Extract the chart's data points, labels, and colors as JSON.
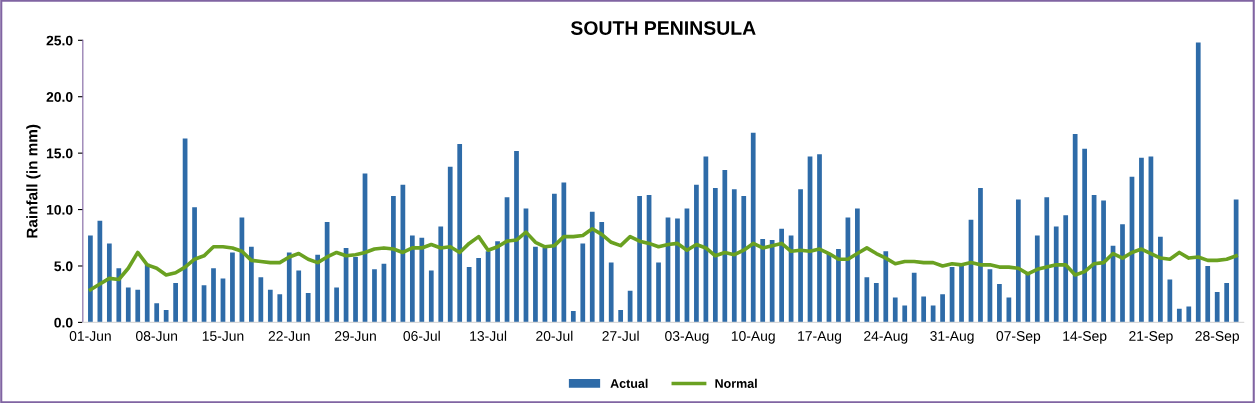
{
  "chart_data": {
    "type": "bar",
    "title": "SOUTH PENINSULA",
    "ylabel": "Rainfall (in mm)",
    "categories": [
      "01-Jun",
      null,
      null,
      null,
      null,
      null,
      null,
      "08-Jun",
      null,
      null,
      null,
      null,
      null,
      null,
      "15-Jun",
      null,
      null,
      null,
      null,
      null,
      null,
      "22-Jun",
      null,
      null,
      null,
      null,
      null,
      null,
      "29-Jun",
      null,
      null,
      null,
      null,
      null,
      null,
      "06-Jul",
      null,
      null,
      null,
      null,
      null,
      null,
      "13-Jul",
      null,
      null,
      null,
      null,
      null,
      null,
      "20-Jul",
      null,
      null,
      null,
      null,
      null,
      null,
      "27-Jul",
      null,
      null,
      null,
      null,
      null,
      null,
      "03-Aug",
      null,
      null,
      null,
      null,
      null,
      null,
      "10-Aug",
      null,
      null,
      null,
      null,
      null,
      null,
      "17-Aug",
      null,
      null,
      null,
      null,
      null,
      null,
      "24-Aug",
      null,
      null,
      null,
      null,
      null,
      null,
      "31-Aug",
      null,
      null,
      null,
      null,
      null,
      null,
      "07-Sep",
      null,
      null,
      null,
      null,
      null,
      null,
      "14-Sep",
      null,
      null,
      null,
      null,
      null,
      null,
      "21-Sep",
      null,
      null,
      null,
      null,
      null,
      null,
      "28-Sep",
      null,
      null
    ],
    "series": [
      {
        "name": "Actual",
        "color": "#2e6ba8",
        "values": [
          7.7,
          9.0,
          7.0,
          4.8,
          3.1,
          2.9,
          5.2,
          1.7,
          1.1,
          3.5,
          16.3,
          10.2,
          3.3,
          4.8,
          3.9,
          6.2,
          9.3,
          6.7,
          4.0,
          2.9,
          2.5,
          6.2,
          4.6,
          2.6,
          6.0,
          8.9,
          3.1,
          6.6,
          5.8,
          13.2,
          4.7,
          5.2,
          11.2,
          12.2,
          7.7,
          7.5,
          4.6,
          8.5,
          13.8,
          15.8,
          4.9,
          5.7,
          6.3,
          7.2,
          11.1,
          15.2,
          10.1,
          6.7,
          6.6,
          11.4,
          12.4,
          1.0,
          7.0,
          9.8,
          8.9,
          5.3,
          1.1,
          2.8,
          11.2,
          11.3,
          5.3,
          9.3,
          9.2,
          10.1,
          12.2,
          14.7,
          11.9,
          13.5,
          11.8,
          11.2,
          16.8,
          7.4,
          7.3,
          8.3,
          7.7,
          11.8,
          14.7,
          14.9,
          6.1,
          6.5,
          9.3,
          10.1,
          4.0,
          3.5,
          6.3,
          2.2,
          1.5,
          4.4,
          2.3,
          1.5,
          2.5,
          4.9,
          5.2,
          9.1,
          11.9,
          4.7,
          3.4,
          2.2,
          10.9,
          4.4,
          7.7,
          11.1,
          8.5,
          9.5,
          16.7,
          15.4,
          11.3,
          10.8,
          6.8,
          8.7,
          12.9,
          14.6,
          14.7,
          7.6,
          3.8,
          1.2,
          1.4,
          24.8,
          5.0,
          2.7,
          3.5,
          10.9
        ]
      },
      {
        "name": "Normal",
        "type": "line",
        "color": "#6aa121",
        "values": [
          2.9,
          3.4,
          3.9,
          3.8,
          4.8,
          6.2,
          5.1,
          4.8,
          4.2,
          4.4,
          4.9,
          5.6,
          5.9,
          6.7,
          6.7,
          6.6,
          6.3,
          5.5,
          5.4,
          5.3,
          5.3,
          5.8,
          6.1,
          5.6,
          5.3,
          5.8,
          6.2,
          5.9,
          6.0,
          6.2,
          6.5,
          6.6,
          6.5,
          6.2,
          6.6,
          6.6,
          6.9,
          6.6,
          6.7,
          6.2,
          7.0,
          7.6,
          6.4,
          6.7,
          7.2,
          7.3,
          8.0,
          7.1,
          6.7,
          6.8,
          7.6,
          7.6,
          7.7,
          8.3,
          7.8,
          7.1,
          6.8,
          7.6,
          7.2,
          7.0,
          6.7,
          6.9,
          7.0,
          6.4,
          6.9,
          6.6,
          5.9,
          6.2,
          6.0,
          6.4,
          7.0,
          6.6,
          6.8,
          7.0,
          6.3,
          6.4,
          6.3,
          6.5,
          6.1,
          5.6,
          5.6,
          6.1,
          6.6,
          6.1,
          5.7,
          5.2,
          5.4,
          5.4,
          5.3,
          5.3,
          5.0,
          5.2,
          5.1,
          5.3,
          5.1,
          5.1,
          4.9,
          4.9,
          4.8,
          4.3,
          4.7,
          4.9,
          5.1,
          5.1,
          4.2,
          4.5,
          5.2,
          5.3,
          6.1,
          5.7,
          6.2,
          6.5,
          6.1,
          5.7,
          5.6,
          6.2,
          5.7,
          5.8,
          5.5,
          5.5,
          5.6,
          5.9
        ]
      }
    ],
    "ylim": [
      0,
      25
    ],
    "yticks": [
      {
        "value": 0,
        "label": "0.0"
      },
      {
        "value": 5,
        "label": "5.0"
      },
      {
        "value": 10,
        "label": "10.0"
      },
      {
        "value": 15,
        "label": "15.0"
      },
      {
        "value": 20,
        "label": "20.0"
      },
      {
        "value": 25,
        "label": "25.0"
      }
    ],
    "grid": false,
    "legend": "bottom",
    "marker": "none",
    "line_style": "solid"
  }
}
